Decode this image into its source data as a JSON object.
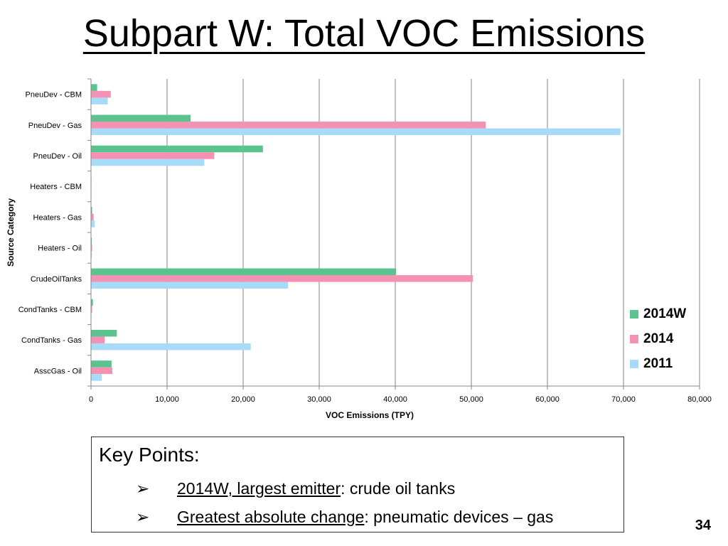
{
  "slide": {
    "title": "Subpart W: Total VOC Emissions",
    "page_number": "34"
  },
  "key_points": {
    "heading": "Key Points:",
    "items": [
      {
        "underlined": "2014W, largest emitter",
        "rest": ": crude oil tanks"
      },
      {
        "underlined": "Greatest absolute change",
        "rest": ": pneumatic devices – gas"
      }
    ]
  },
  "chart_data": {
    "type": "bar",
    "orientation": "horizontal",
    "ylabel": "Source Category",
    "xlabel": "VOC Emissions (TPY)",
    "xlim": [
      0,
      80000
    ],
    "x_ticks": [
      0,
      10000,
      20000,
      30000,
      40000,
      50000,
      60000,
      70000,
      80000
    ],
    "x_tick_labels": [
      "0",
      "10,000",
      "20,000",
      "30,000",
      "40,000",
      "50,000",
      "60,000",
      "70,000",
      "80,000"
    ],
    "grid": "vertical",
    "legend_position": "right",
    "categories": [
      "PneuDev - CBM",
      "PneuDev - Gas",
      "PneuDev - Oil",
      "Heaters - CBM",
      "Heaters - Gas",
      "Heaters - Oil",
      "CrudeOilTanks",
      "CondTanks - CBM",
      "CondTanks - Gas",
      "AsscGas - Oil"
    ],
    "series": [
      {
        "name": "2014W",
        "color": "#5BC48E",
        "values": [
          800,
          13100,
          22600,
          50,
          150,
          100,
          40100,
          250,
          3400,
          2700
        ]
      },
      {
        "name": "2014",
        "color": "#F591B2",
        "values": [
          2600,
          51900,
          16200,
          50,
          350,
          150,
          50200,
          150,
          1800,
          2800
        ]
      },
      {
        "name": "2011",
        "color": "#A7DBF7",
        "values": [
          2200,
          69600,
          14900,
          50,
          500,
          100,
          25900,
          50,
          21000,
          1400
        ]
      }
    ]
  }
}
